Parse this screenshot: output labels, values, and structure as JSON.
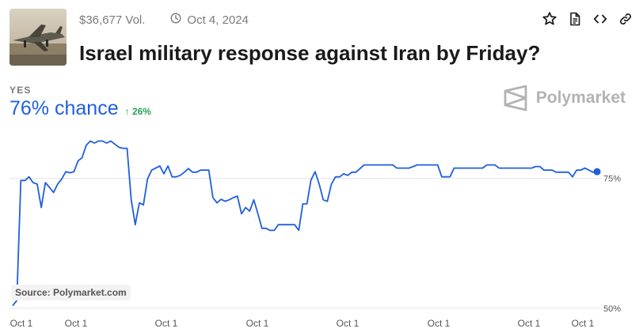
{
  "header": {
    "volume": "$36,677 Vol.",
    "date": "Oct 4, 2024",
    "title": "Israel military response against Iran by Friday?"
  },
  "icons": {
    "favorite": "star-icon",
    "document": "document-icon",
    "embed": "code-icon",
    "link": "link-icon",
    "clock": "clock-icon"
  },
  "outcome": {
    "label": "YES",
    "chance": "76% chance",
    "delta": "26%",
    "delta_direction": "up"
  },
  "brand": {
    "name": "Polymarket"
  },
  "source": "Source: Polymarket.com",
  "colors": {
    "line": "#1f5fdc",
    "positive": "#27a15b",
    "grid": "#e4e4e4"
  },
  "chart_data": {
    "type": "line",
    "title": "",
    "xlabel": "",
    "ylabel": "",
    "ylim": [
      50,
      85
    ],
    "y_ticks": [
      {
        "value": 75,
        "label": "75%"
      },
      {
        "value": 50,
        "label": "50%"
      }
    ],
    "x_tick_labels": [
      "Oct 1",
      "Oct 1",
      "Oct 1",
      "Oct 1",
      "Oct 1",
      "Oct 1",
      "Oct 1",
      "Oct 1"
    ],
    "grid": true,
    "series": [
      {
        "values": [
          50.5,
          51.5,
          74.6,
          74.6,
          75.3,
          74.2,
          73.9,
          69.4,
          74.2,
          73.3,
          72.3,
          73.9,
          74.9,
          76.3,
          76.1,
          76.3,
          78.4,
          79.0,
          81.4,
          82.2,
          81.8,
          82.2,
          82.2,
          81.8,
          82.2,
          81.6,
          81.0,
          80.8,
          80.8,
          70.9,
          66.1,
          70.3,
          69.9,
          74.9,
          76.6,
          77.0,
          77.4,
          75.9,
          77.4,
          75.3,
          75.3,
          75.6,
          76.2,
          76.9,
          76.2,
          76.2,
          76.6,
          76.6,
          76.6,
          71.3,
          70.3,
          71.0,
          70.6,
          70.9,
          71.3,
          71.6,
          68.2,
          69.4,
          68.7,
          70.9,
          68.2,
          65.4,
          65.4,
          65.0,
          65.0,
          66.1,
          66.1,
          66.1,
          66.1,
          66.1,
          65.0,
          70.1,
          70.1,
          74.7,
          76.3,
          73.9,
          70.9,
          70.6,
          73.9,
          75.3,
          75.3,
          75.9,
          75.6,
          76.2,
          76.2,
          76.9,
          77.6,
          77.6,
          77.6,
          77.6,
          77.6,
          77.6,
          77.6,
          77.6,
          77.0,
          77.0,
          77.0,
          77.0,
          77.3,
          77.6,
          77.6,
          77.6,
          77.6,
          77.6,
          77.6,
          75.3,
          75.3,
          75.3,
          77.0,
          77.0,
          77.0,
          77.0,
          77.0,
          77.0,
          77.0,
          77.0,
          77.6,
          77.6,
          77.6,
          77.0,
          77.0,
          77.0,
          77.0,
          77.0,
          77.0,
          77.0,
          77.0,
          77.0,
          77.3,
          77.3,
          76.6,
          76.6,
          76.6,
          76.2,
          76.2,
          76.2,
          76.2,
          75.3,
          76.6,
          76.6,
          77.0,
          76.6,
          76.2,
          76.3
        ]
      }
    ]
  }
}
